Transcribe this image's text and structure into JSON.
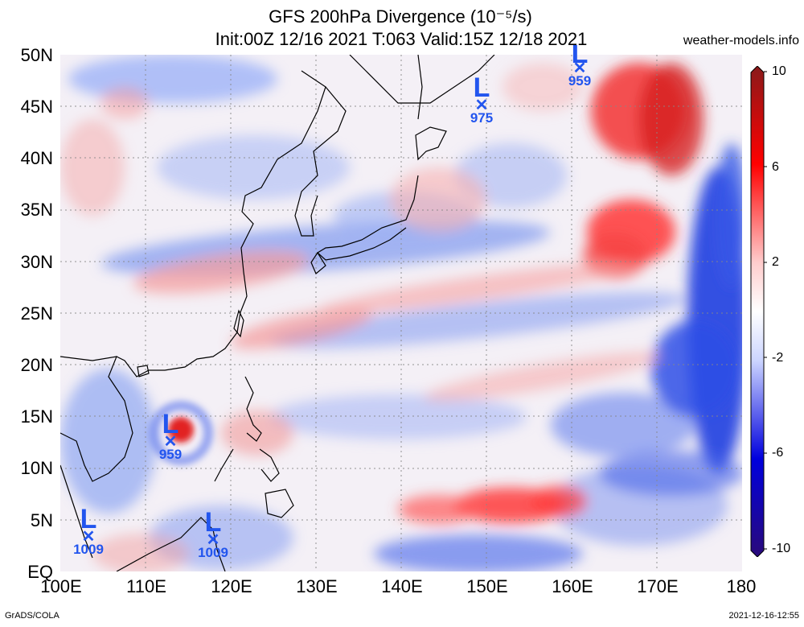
{
  "title_line1": "GFS 200hPa Divergence (10⁻⁵/s)",
  "title_line2": "Init:00Z 12/16 2021 T:063 Valid:15Z 12/18 2021",
  "site": "weather-models.info",
  "footer_left": "GrADS/COLA",
  "footer_right": "2021-12-16-12:55",
  "lat_labels": [
    "50N",
    "45N",
    "40N",
    "35N",
    "30N",
    "25N",
    "20N",
    "15N",
    "10N",
    "5N",
    "EQ"
  ],
  "lon_labels": [
    "100E",
    "110E",
    "120E",
    "130E",
    "140E",
    "150E",
    "160E",
    "170E",
    "180"
  ],
  "colorbar": {
    "labels": [
      "10",
      "6",
      "2",
      "-2",
      "-6",
      "-10"
    ],
    "colors": [
      "#8a1a1a",
      "#ff0000",
      "#ffcccc",
      "#ffffff",
      "#ccd5ff",
      "#0000dd",
      "#2a0a7a"
    ]
  },
  "lows": [
    {
      "label": "L",
      "pressure": "959",
      "name": "low-typhoon"
    },
    {
      "label": "L",
      "pressure": "975",
      "name": "low-hokkaido"
    },
    {
      "label": "L",
      "pressure": "959",
      "name": "low-north-pacific"
    },
    {
      "label": "L",
      "pressure": "1009",
      "name": "low-malaya"
    },
    {
      "label": "L",
      "pressure": "1009",
      "name": "low-borneo"
    }
  ],
  "map_data": {
    "projection": "lat-lon",
    "lon_range": [
      100,
      180
    ],
    "lat_range": [
      0,
      50
    ],
    "field": "200hPa divergence",
    "units": "10^-5/s"
  }
}
